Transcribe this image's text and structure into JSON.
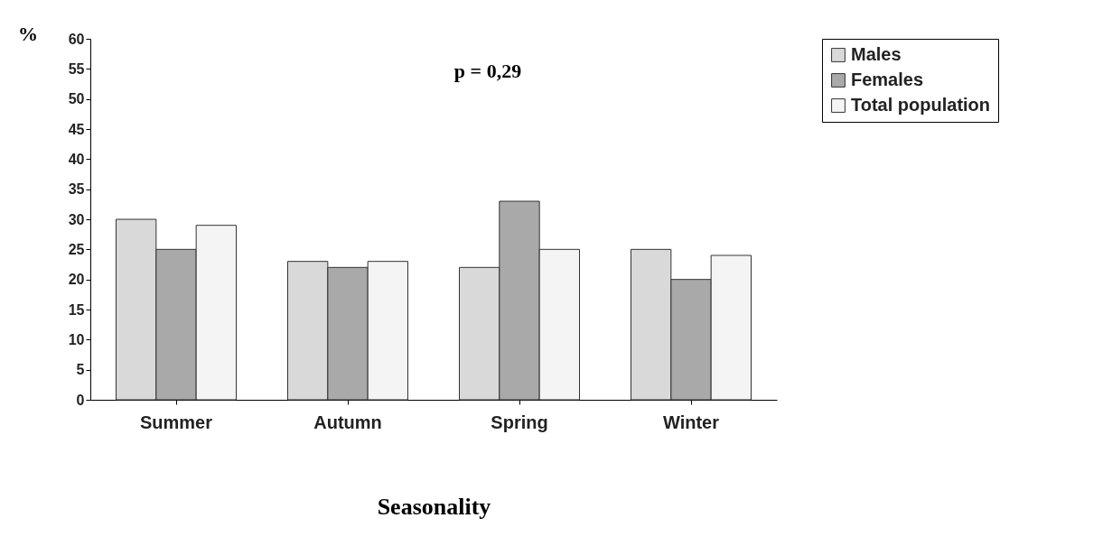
{
  "chart_data": {
    "type": "bar",
    "ylabel": "%",
    "xlabel": "Seasonality",
    "annotations": [
      "p = 0,29"
    ],
    "categories": [
      "Summer",
      "Autumn",
      "Spring",
      "Winter"
    ],
    "series": [
      {
        "name": "Males",
        "color": "#d9d9d9",
        "values": [
          30,
          23,
          22,
          25
        ]
      },
      {
        "name": "Females",
        "color": "#a9a9a9",
        "values": [
          25,
          22,
          33,
          20
        ]
      },
      {
        "name": "Total population",
        "color": "#f4f4f4",
        "values": [
          29,
          23,
          25,
          24
        ]
      }
    ],
    "ylim": [
      0,
      60
    ],
    "yticks": [
      0,
      5,
      10,
      15,
      20,
      25,
      30,
      35,
      40,
      45,
      50,
      55,
      60
    ],
    "grid": false,
    "legend": "right"
  }
}
